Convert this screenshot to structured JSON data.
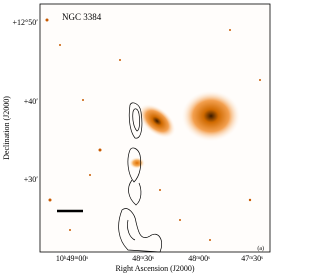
{
  "figure": {
    "title": "NGC 3384",
    "panel_label": "(a)",
    "x_axis": {
      "label": "Right Ascension (J2000)",
      "tick_labels": [
        "10ʰ49ᵐ00ˢ",
        "48ᵐ30ˢ",
        "48ᵐ00ˢ",
        "47ᵐ30ˢ"
      ]
    },
    "y_axis": {
      "label": "Declination (J2000)",
      "tick_labels": [
        "+12°50′",
        "+40′",
        "+30′"
      ]
    }
  }
}
